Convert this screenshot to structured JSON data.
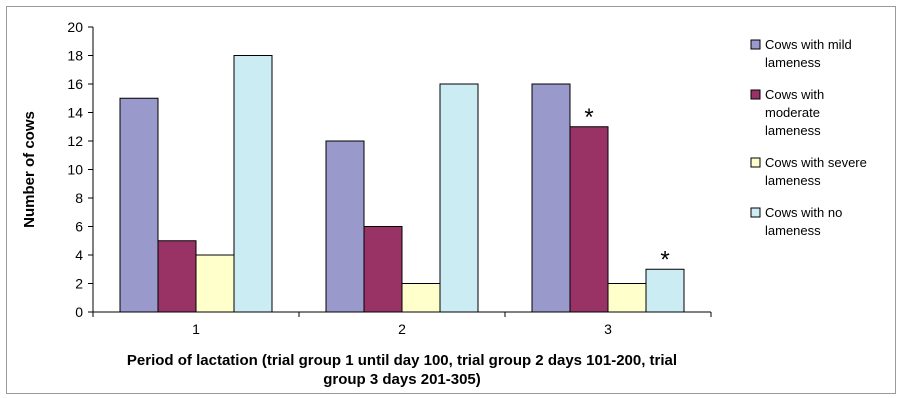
{
  "chart_data": {
    "type": "bar",
    "title": "",
    "xlabel_lines": [
      "Period of lactation (trial group 1 until day 100, trial group 2 days 101-200, trial",
      "group 3 days 201-305)"
    ],
    "ylabel": "Number of cows",
    "categories": [
      "1",
      "2",
      "3"
    ],
    "ylim": [
      0,
      20
    ],
    "yticks": [
      0,
      2,
      4,
      6,
      8,
      10,
      12,
      14,
      16,
      18,
      20
    ],
    "grid": false,
    "legend_position": "right",
    "series": [
      {
        "name_lines": [
          "Cows with mild",
          "lameness"
        ],
        "values": [
          15,
          12,
          16
        ],
        "color": "#9999CC"
      },
      {
        "name_lines": [
          "Cows with",
          "moderate",
          "lameness"
        ],
        "values": [
          5,
          6,
          13
        ],
        "color": "#993366"
      },
      {
        "name_lines": [
          "Cows with severe",
          "lameness"
        ],
        "values": [
          4,
          2,
          2
        ],
        "color": "#FFFFCC"
      },
      {
        "name_lines": [
          "Cows with no",
          "lameness"
        ],
        "values": [
          18,
          16,
          3
        ],
        "color": "#CCECF4"
      }
    ],
    "annotations": [
      {
        "text": "*",
        "category": "3",
        "series": 1
      },
      {
        "text": "*",
        "category": "3",
        "series": 3
      }
    ]
  }
}
